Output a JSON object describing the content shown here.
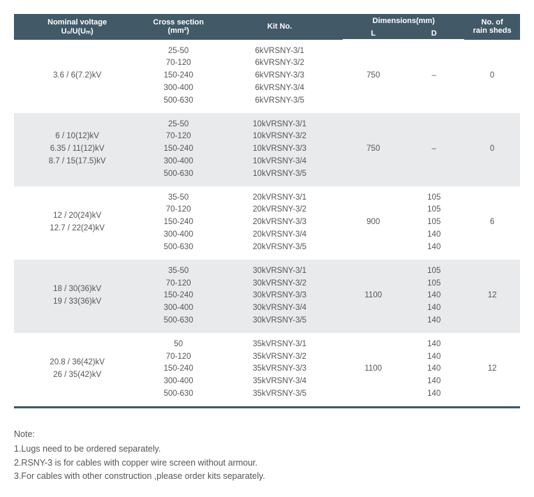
{
  "table": {
    "header": {
      "voltage_top": "Nominal voltage",
      "voltage_sub": "U₀/U(Uₘ)",
      "cross_top": "Cross section",
      "cross_sub": "(mm²)",
      "kit": "Kit No.",
      "dim_top": "Dimensions(mm)",
      "dim_l": "L",
      "dim_d": "D",
      "sheds_top": "No. of",
      "sheds_sub": "rain sheds"
    },
    "rows": [
      {
        "shade": "light",
        "voltage": [
          "3.6 / 6(7.2)kV"
        ],
        "cross": [
          "25-50",
          "70-120",
          "150-240",
          "300-400",
          "500-630"
        ],
        "kit": [
          "6kVRSNY-3/1",
          "6kVRSNY-3/2",
          "6kVRSNY-3/3",
          "6kVRSNY-3/4",
          "6kVRSNY-3/5"
        ],
        "L": [
          "750"
        ],
        "D": [
          "–"
        ],
        "sheds": [
          "0"
        ]
      },
      {
        "shade": "grey",
        "voltage": [
          "6 / 10(12)kV",
          "6.35 / 11(12)kV",
          "8.7 / 15(17.5)kV"
        ],
        "cross": [
          "25-50",
          "70-120",
          "150-240",
          "300-400",
          "500-630"
        ],
        "kit": [
          "10kVRSNY-3/1",
          "10kVRSNY-3/2",
          "10kVRSNY-3/3",
          "10kVRSNY-3/4",
          "10kVRSNY-3/5"
        ],
        "L": [
          "750"
        ],
        "D": [
          "–"
        ],
        "sheds": [
          "0"
        ]
      },
      {
        "shade": "light",
        "voltage": [
          "12 / 20(24)kV",
          "12.7 / 22(24)kV"
        ],
        "cross": [
          "35-50",
          "70-120",
          "150-240",
          "300-400",
          "500-630"
        ],
        "kit": [
          "20kVRSNY-3/1",
          "20kVRSNY-3/2",
          "20kVRSNY-3/3",
          "20kVRSNY-3/4",
          "20kVRSNY-3/5"
        ],
        "L": [
          "900"
        ],
        "D": [
          "105",
          "105",
          "105",
          "140",
          "140"
        ],
        "sheds": [
          "6"
        ]
      },
      {
        "shade": "grey",
        "voltage": [
          "18 / 30(36)kV",
          "19 / 33(36)kV"
        ],
        "cross": [
          "35-50",
          "70-120",
          "150-240",
          "300-400",
          "500-630"
        ],
        "kit": [
          "30kVRSNY-3/1",
          "30kVRSNY-3/2",
          "30kVRSNY-3/3",
          "30kVRSNY-3/4",
          "30kVRSNY-3/5"
        ],
        "L": [
          "1100"
        ],
        "D": [
          "105",
          "105",
          "140",
          "140",
          "140"
        ],
        "sheds": [
          "12"
        ]
      },
      {
        "shade": "light",
        "voltage": [
          "20.8 / 36(42)kV",
          "26 / 35(42)kV"
        ],
        "cross": [
          "50",
          "70-120",
          "150-240",
          "300-400",
          "500-630"
        ],
        "kit": [
          "35kVRSNY-3/1",
          "35kVRSNY-3/2",
          "35kVRSNY-3/3",
          "35kVRSNY-3/4",
          "35kVRSNY-3/5"
        ],
        "L": [
          "1100"
        ],
        "D": [
          "140",
          "140",
          "140",
          "140",
          "140"
        ],
        "sheds": [
          "12"
        ]
      }
    ]
  },
  "note": {
    "title": "Note:",
    "lines": [
      "1.Lugs need to be ordered separately.",
      "2.RSNY-3 is for cables with copper wire screen without armour.",
      "3.For cables with other construction ,please order kits separately."
    ]
  },
  "colors": {
    "header_bg": "#425968",
    "header_fg": "#ffffff",
    "row_alt_bg": "#e9eaec",
    "row_bg": "#ffffff",
    "text": "#555555",
    "rule": "#3f5766"
  }
}
